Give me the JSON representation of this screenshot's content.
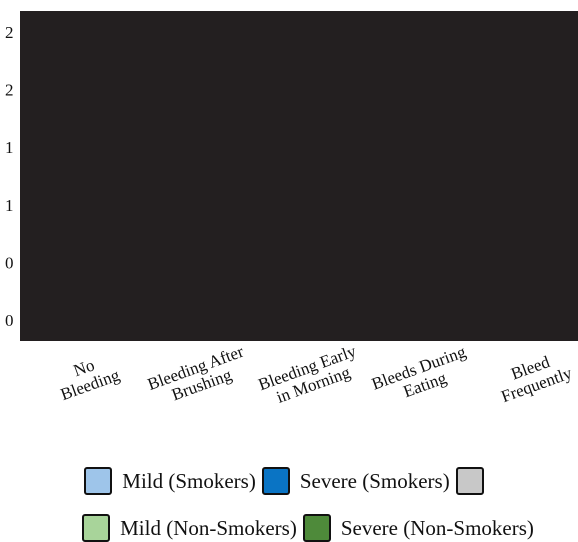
{
  "chart_data": {
    "type": "bar",
    "title": "",
    "xlabel": "",
    "ylabel": "",
    "categories": [
      [
        "No",
        "Bleeding"
      ],
      [
        "Bleeding After",
        "Brushing"
      ],
      [
        "Bleeding Early",
        "in Morning"
      ],
      [
        "Bleeds During",
        "Eating"
      ],
      [
        "Bleed",
        "Frequently"
      ]
    ],
    "y_tick_labels": [
      "2",
      "2",
      "1",
      "1",
      "0",
      "0"
    ],
    "ylim": [
      0,
      2.5
    ],
    "grid": false,
    "plot_background": "#231f20",
    "series": [
      {
        "name": "Mild (Smokers)",
        "color": "#9ec5ea",
        "values": [
          0,
          0,
          0,
          0,
          0
        ]
      },
      {
        "name": "Severe (Smokers)",
        "color": "#0a74c4",
        "values": [
          0,
          0,
          0,
          0,
          0
        ]
      },
      {
        "name": "",
        "color": "#c8c8c8",
        "values": [
          0,
          0,
          0,
          0,
          0
        ]
      },
      {
        "name": "Mild (Non-Smokers)",
        "color": "#a8d49a",
        "values": [
          0,
          0,
          0,
          0,
          0
        ]
      },
      {
        "name": "Severe (Non-Smokers)",
        "color": "#4e8a3a",
        "values": [
          0,
          0,
          0,
          0,
          0
        ]
      }
    ],
    "legend_position": "bottom"
  }
}
